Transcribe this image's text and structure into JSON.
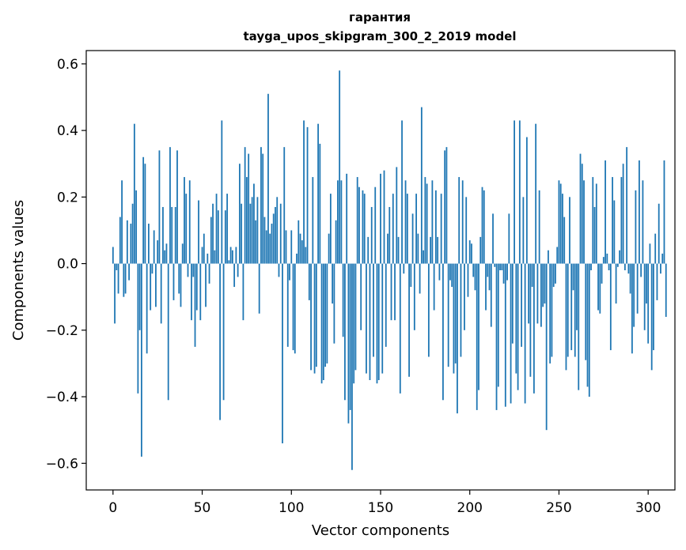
{
  "chart_data": {
    "type": "bar",
    "title": "гарантия",
    "subtitle": "tayga_upos_skipgram_300_2_2019 model",
    "xlabel": "Vector components",
    "ylabel": "Components values",
    "xlim": [
      -15,
      315
    ],
    "ylim": [
      -0.68,
      0.64
    ],
    "xticks": [
      0,
      50,
      100,
      150,
      200,
      250,
      300
    ],
    "xtick_labels": [
      "0",
      "50",
      "100",
      "150",
      "200",
      "250",
      "300"
    ],
    "yticks": [
      -0.6,
      -0.4,
      -0.2,
      0.0,
      0.2,
      0.4,
      0.6
    ],
    "ytick_labels": [
      "−0.6",
      "−0.4",
      "−0.2",
      "0.0",
      "0.2",
      "0.4",
      "0.6"
    ],
    "grid": false,
    "bar_color": "#1f77b4",
    "values": [
      0.05,
      -0.18,
      -0.02,
      -0.09,
      0.14,
      0.25,
      -0.1,
      -0.09,
      0.13,
      -0.05,
      0.12,
      0.18,
      0.42,
      0.22,
      -0.39,
      -0.2,
      -0.58,
      0.32,
      0.3,
      -0.27,
      0.12,
      -0.14,
      -0.03,
      0.1,
      -0.13,
      0.07,
      0.34,
      -0.18,
      0.17,
      0.04,
      0.06,
      -0.41,
      0.35,
      0.17,
      -0.11,
      0.17,
      0.34,
      -0.09,
      -0.13,
      0.06,
      0.26,
      0.21,
      -0.04,
      0.25,
      -0.17,
      -0.04,
      -0.25,
      -0.14,
      0.19,
      -0.17,
      0.05,
      0.09,
      -0.13,
      0.03,
      -0.06,
      0.14,
      0.18,
      0.04,
      0.21,
      0.16,
      -0.47,
      0.43,
      -0.41,
      0.16,
      0.21,
      0.01,
      0.05,
      0.04,
      -0.07,
      0.05,
      -0.04,
      0.3,
      0.18,
      -0.17,
      0.35,
      0.26,
      0.33,
      0.18,
      0.2,
      0.24,
      0.13,
      0.2,
      -0.15,
      0.35,
      0.33,
      0.14,
      0.1,
      0.51,
      0.09,
      0.12,
      0.15,
      0.17,
      0.2,
      -0.04,
      0.18,
      -0.54,
      0.35,
      0.1,
      -0.25,
      -0.05,
      0.1,
      -0.26,
      -0.27,
      0.03,
      0.13,
      0.09,
      0.07,
      0.43,
      0.05,
      0.41,
      -0.11,
      -0.32,
      0.26,
      -0.33,
      -0.31,
      0.42,
      0.36,
      -0.36,
      -0.35,
      -0.31,
      -0.3,
      0.09,
      0.21,
      -0.12,
      -0.24,
      0.13,
      0.25,
      0.58,
      0.25,
      -0.22,
      -0.41,
      0.27,
      -0.48,
      -0.44,
      -0.62,
      -0.36,
      -0.32,
      0.26,
      0.23,
      -0.2,
      0.22,
      0.21,
      -0.33,
      0.08,
      -0.35,
      0.17,
      -0.28,
      0.23,
      -0.36,
      -0.35,
      0.27,
      -0.33,
      0.28,
      -0.25,
      0.09,
      0.17,
      -0.17,
      0.21,
      -0.17,
      0.29,
      0.08,
      -0.39,
      0.43,
      -0.03,
      0.25,
      0.21,
      -0.34,
      -0.07,
      0.15,
      -0.2,
      0.21,
      0.09,
      -0.09,
      0.47,
      0.04,
      0.26,
      0.24,
      -0.28,
      0.08,
      0.25,
      -0.14,
      0.22,
      0.08,
      -0.05,
      0.21,
      -0.41,
      0.34,
      0.35,
      -0.31,
      -0.05,
      -0.07,
      -0.33,
      -0.3,
      -0.45,
      0.26,
      -0.28,
      0.25,
      -0.2,
      0.2,
      -0.1,
      0.07,
      0.06,
      -0.04,
      -0.08,
      -0.44,
      -0.38,
      0.08,
      0.23,
      0.22,
      -0.14,
      -0.04,
      -0.08,
      -0.19,
      0.15,
      -0.01,
      -0.44,
      -0.37,
      -0.02,
      -0.02,
      -0.06,
      -0.43,
      -0.05,
      0.15,
      -0.42,
      -0.24,
      0.43,
      -0.33,
      -0.38,
      0.43,
      -0.25,
      0.2,
      -0.42,
      0.38,
      -0.18,
      -0.34,
      -0.07,
      -0.39,
      0.42,
      -0.18,
      0.22,
      -0.19,
      -0.13,
      -0.12,
      -0.5,
      0.04,
      -0.3,
      -0.28,
      -0.07,
      -0.06,
      0.05,
      0.25,
      0.24,
      0.21,
      0.14,
      -0.32,
      -0.28,
      0.2,
      -0.26,
      -0.08,
      -0.28,
      -0.2,
      -0.38,
      0.33,
      0.3,
      0.25,
      -0.29,
      -0.37,
      -0.4,
      -0.02,
      0.26,
      0.17,
      0.24,
      -0.14,
      -0.15,
      -0.06,
      0.02,
      0.31,
      0.03,
      -0.02,
      -0.26,
      0.26,
      0.19,
      -0.12,
      -0.01,
      0.04,
      0.26,
      0.3,
      -0.02,
      0.35,
      -0.03,
      -0.09,
      -0.27,
      -0.19,
      0.22,
      -0.15,
      0.31,
      -0.04,
      0.25,
      -0.2,
      -0.12,
      -0.24,
      0.06,
      -0.32,
      -0.26,
      0.09,
      -0.11,
      0.18,
      -0.03,
      0.03,
      0.31,
      -0.16
    ]
  }
}
